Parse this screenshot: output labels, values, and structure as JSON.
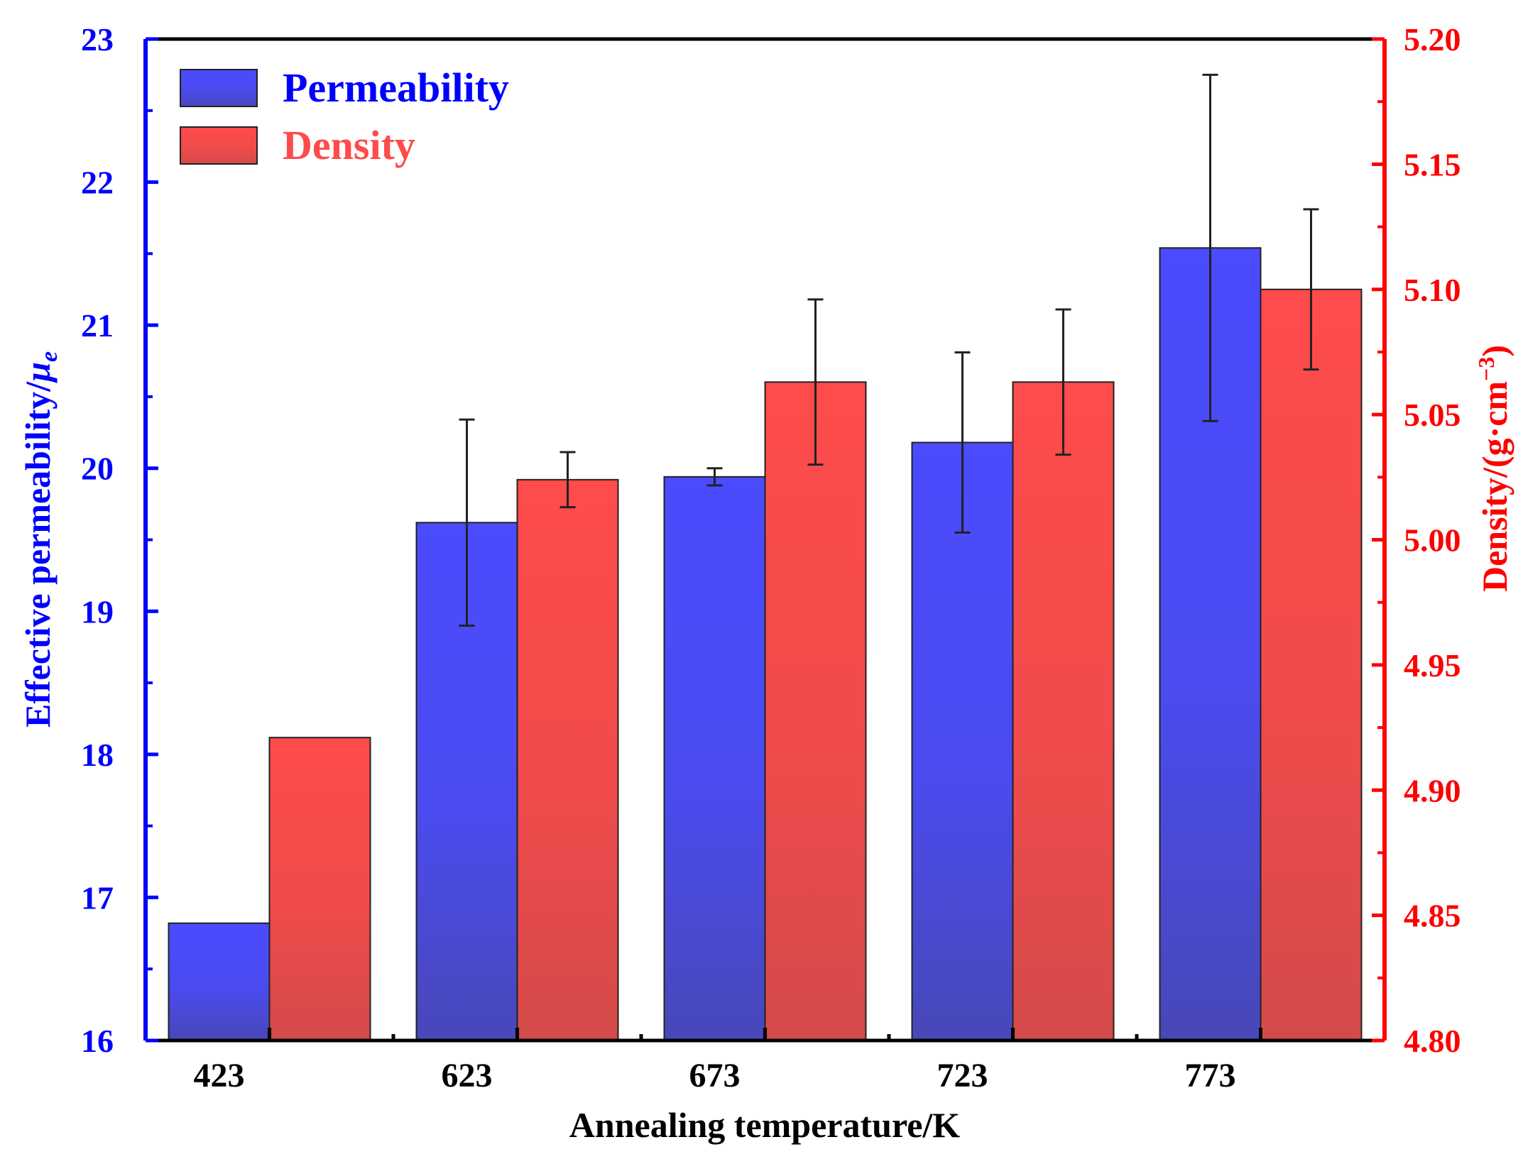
{
  "chart_data": {
    "type": "bar",
    "categories": [
      "423",
      "623",
      "673",
      "723",
      "773"
    ],
    "series": [
      {
        "name": "Permeability",
        "axis": "left",
        "color": "#4b4bff",
        "values": [
          16.82,
          19.62,
          19.94,
          20.18,
          21.54
        ],
        "errors": [
          null,
          0.72,
          0.06,
          0.63,
          1.21
        ]
      },
      {
        "name": "Density",
        "axis": "right",
        "color": "#ff4b4b",
        "values": [
          4.921,
          5.024,
          5.063,
          5.063,
          5.1
        ],
        "errors": [
          null,
          0.011,
          0.033,
          0.029,
          0.032
        ]
      }
    ],
    "xlabel": "Annealing temperature/K",
    "ylabel_left": "Effective permeability/",
    "ylabel_left_symbol": "μ",
    "ylabel_left_subscript": "e",
    "ylabel_right": "Density/(g·cm",
    "ylabel_right_superscript": "−3",
    "ylabel_right_close": ")",
    "ylim_left": [
      16,
      23
    ],
    "ylim_right": [
      4.8,
      5.2
    ],
    "yticks_left": [
      "16",
      "17",
      "18",
      "19",
      "20",
      "21",
      "22",
      "23"
    ],
    "yticks_right": [
      "4.80",
      "4.85",
      "4.90",
      "4.95",
      "5.00",
      "5.05",
      "5.10",
      "5.15",
      "5.20"
    ],
    "legend_position": "top-left",
    "grid": false,
    "colors": {
      "left_axis": "#0000ff",
      "right_axis": "#ff0000",
      "permeability_label": "#0000ff",
      "density_label": "#ff4b4b"
    }
  }
}
